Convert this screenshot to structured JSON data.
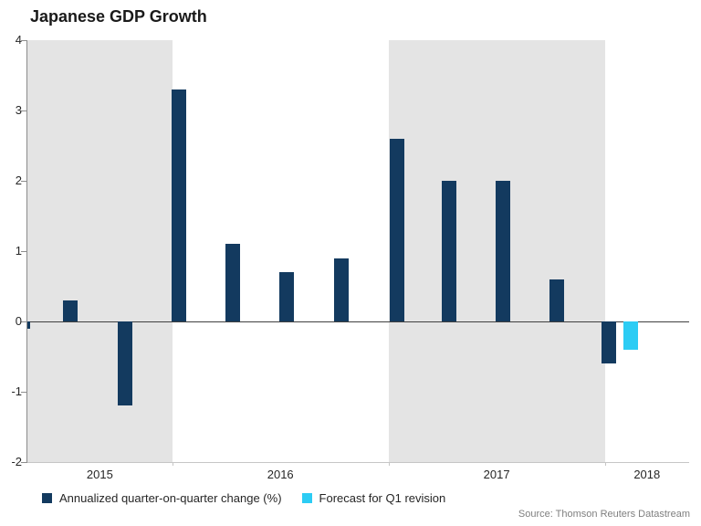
{
  "chart_data": {
    "type": "bar",
    "title": "Japanese GDP Growth",
    "xlabel": "",
    "ylabel": "",
    "y_axis": {
      "min": -2,
      "max": 4,
      "ticks": [
        4,
        3,
        2,
        1,
        0,
        -1,
        -2
      ]
    },
    "x_axis": {
      "min": 2015.33,
      "max": 2018.39,
      "unit": "year",
      "year_labels": [
        2015,
        2016,
        2017,
        2018
      ],
      "shaded_years": [
        2015,
        2017
      ]
    },
    "band_colors": {
      "shaded": "#e4e4e4",
      "plain": "#ffffff"
    },
    "series": [
      {
        "name": "Annualized quarter-on-quarter change (%)",
        "color": "#133a5f",
        "points": [
          {
            "label": "2015 Q2",
            "t": 2015.31,
            "value": -0.1
          },
          {
            "label": "2015 Q3",
            "t": 2015.53,
            "value": 0.3
          },
          {
            "label": "2015 Q4",
            "t": 2015.78,
            "value": -1.2
          },
          {
            "label": "2016 Q1",
            "t": 2016.03,
            "value": 3.3
          },
          {
            "label": "2016 Q2",
            "t": 2016.28,
            "value": 1.1
          },
          {
            "label": "2016 Q3",
            "t": 2016.53,
            "value": 0.7
          },
          {
            "label": "2016 Q4",
            "t": 2016.78,
            "value": 0.9
          },
          {
            "label": "2017 Q1",
            "t": 2017.04,
            "value": 2.6
          },
          {
            "label": "2017 Q2",
            "t": 2017.28,
            "value": 2.0
          },
          {
            "label": "2017 Q3",
            "t": 2017.53,
            "value": 2.0
          },
          {
            "label": "2017 Q4",
            "t": 2017.78,
            "value": 0.6
          },
          {
            "label": "2018 Q1",
            "t": 2018.02,
            "value": -0.6
          }
        ]
      },
      {
        "name": "Forecast for Q1 revision",
        "color": "#2cccf4",
        "points": [
          {
            "label": "2018 Q1 revision",
            "t": 2018.12,
            "value": -0.4
          }
        ]
      }
    ]
  },
  "source_note": "Source: Thomson Reuters Datastream"
}
